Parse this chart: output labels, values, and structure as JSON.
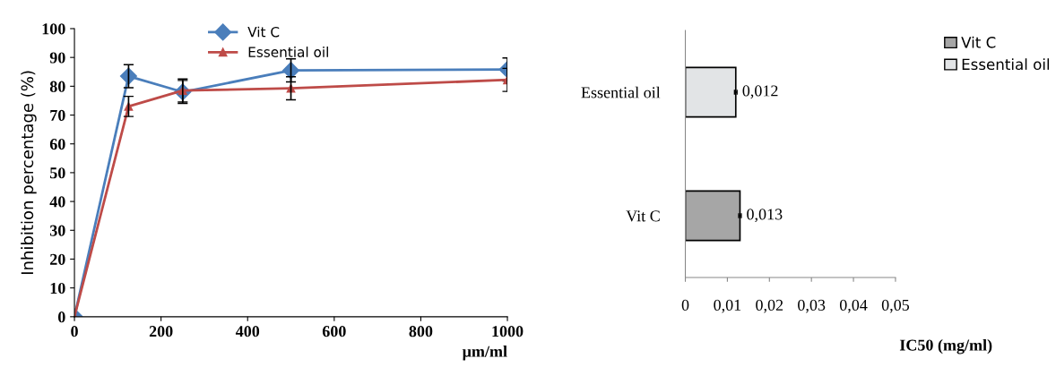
{
  "chart_data": [
    {
      "type": "line",
      "xlabel": "μm/ml",
      "ylabel": "Inhibition percentage (%)",
      "x": [
        0,
        125,
        250,
        500,
        1000
      ],
      "series": [
        {
          "name": "Vit C",
          "color": "#4a7ebb",
          "marker": "diamond",
          "values": [
            0,
            83.5,
            78,
            85.5,
            85.8
          ],
          "errors": [
            null,
            4,
            4,
            4,
            4
          ]
        },
        {
          "name": "Essential oil",
          "color": "#be4b48",
          "marker": "triangle",
          "values": [
            0,
            73,
            78.5,
            79.3,
            82.2
          ],
          "errors": [
            null,
            3.5,
            4,
            4,
            4
          ]
        }
      ],
      "xlim": [
        0,
        1000
      ],
      "xticks": [
        0,
        200,
        400,
        600,
        800,
        1000
      ],
      "ylim": [
        0,
        100
      ],
      "yticks": [
        0,
        10,
        20,
        30,
        40,
        50,
        60,
        70,
        80,
        90,
        100
      ],
      "legend": "top",
      "line_style": "solid",
      "grid": false
    },
    {
      "type": "bar",
      "orientation": "horizontal",
      "xlabel": "IC50 (mg/ml)",
      "categories": [
        "Essential oil",
        "Vit C"
      ],
      "series": [
        {
          "name": "Vit C",
          "color": "#a6a6a6",
          "values": [
            null,
            0.013
          ],
          "errors": [
            null,
            0.0003
          ],
          "value_labels": [
            null,
            "0,013"
          ]
        },
        {
          "name": "Essential oil",
          "color": "#e2e4e6",
          "values": [
            0.012,
            null
          ],
          "errors": [
            0.0003,
            null
          ],
          "value_labels": [
            "0,012",
            null
          ]
        }
      ],
      "xlim": [
        0,
        0.05
      ],
      "xticks": [
        0,
        {
          "value": 0.01,
          "label": "0,01"
        },
        {
          "value": 0.02,
          "label": "0,02"
        },
        {
          "value": 0.03,
          "label": "0,03"
        },
        {
          "value": 0.04,
          "label": "0,04"
        },
        {
          "value": 0.05,
          "label": "0,05"
        }
      ],
      "legend": "top right",
      "grid": false
    }
  ]
}
